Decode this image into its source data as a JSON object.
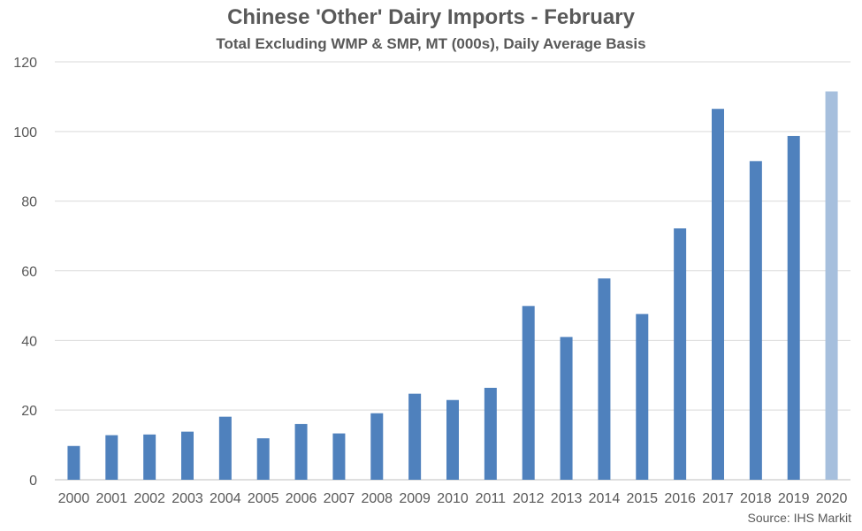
{
  "title": "Chinese 'Other' Dairy Imports - February",
  "subtitle": "Total Excluding WMP & SMP, MT (000s), Daily Average Basis",
  "source": "Source: IHS Markit",
  "colors": {
    "bar": "#4F81BD",
    "bar_highlight": "#A6BFDD",
    "grid": "#D9D9D9",
    "axis": "#BFBFBF",
    "text": "#595959"
  },
  "chart_data": {
    "type": "bar",
    "title": "Chinese 'Other' Dairy Imports - February",
    "subtitle": "Total Excluding WMP & SMP, MT (000s), Daily Average Basis",
    "xlabel": "",
    "ylabel": "",
    "ylim": [
      0,
      120
    ],
    "yticks": [
      0,
      20,
      40,
      60,
      80,
      100,
      120
    ],
    "grid": true,
    "legend": "none",
    "categories": [
      "2000",
      "2001",
      "2002",
      "2003",
      "2004",
      "2005",
      "2006",
      "2007",
      "2008",
      "2009",
      "2010",
      "2011",
      "2012",
      "2013",
      "2014",
      "2015",
      "2016",
      "2017",
      "2018",
      "2019",
      "2020"
    ],
    "values": [
      9.7,
      12.8,
      13.0,
      13.8,
      18.1,
      11.9,
      16.0,
      13.3,
      19.1,
      24.7,
      22.9,
      26.4,
      49.9,
      41.0,
      57.8,
      47.6,
      72.2,
      106.5,
      91.5,
      98.7,
      111.5
    ],
    "highlight_category": "2020"
  }
}
